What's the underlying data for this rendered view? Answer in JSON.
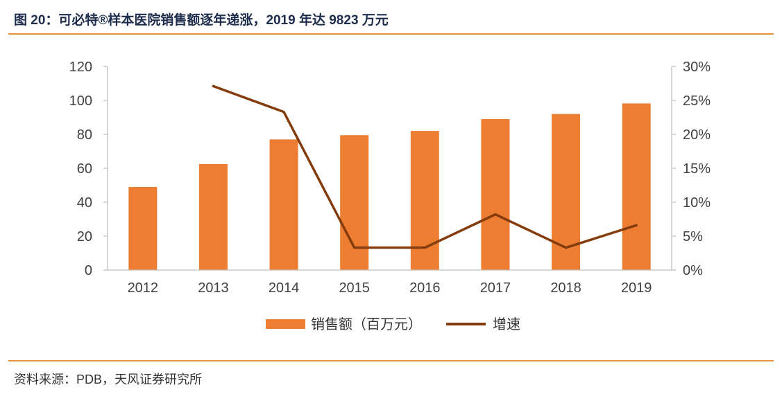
{
  "figure": {
    "title": "图 20：可必特®样本医院销售额逐年递涨，2019 年达 9823 万元",
    "source": "资料来源：PDB，天风证券研究所"
  },
  "colors": {
    "bar": "#ed7d31",
    "line": "#843c0c",
    "axis": "#bfbfbf",
    "rule": "#e3933c",
    "tick_text": "#404040"
  },
  "chart_data": {
    "type": "bar",
    "categories": [
      "2012",
      "2013",
      "2014",
      "2015",
      "2016",
      "2017",
      "2018",
      "2019"
    ],
    "series": [
      {
        "name": "销售额（百万元）",
        "type": "bar",
        "axis": "left",
        "values": [
          49,
          62.5,
          77,
          79.5,
          82,
          89,
          92,
          98.23
        ]
      },
      {
        "name": "增速",
        "type": "line",
        "axis": "right",
        "values": [
          null,
          27.1,
          23.3,
          3.3,
          3.3,
          8.2,
          3.3,
          6.6
        ]
      }
    ],
    "left_axis": {
      "ylim": [
        0,
        120
      ],
      "ticks": [
        "0",
        "20",
        "40",
        "60",
        "80",
        "100",
        "120"
      ]
    },
    "right_axis": {
      "ylim": [
        0,
        30
      ],
      "ticks": [
        "0%",
        "5%",
        "10%",
        "15%",
        "20%",
        "25%",
        "30%"
      ]
    },
    "grid": false,
    "legend_position": "bottom"
  }
}
